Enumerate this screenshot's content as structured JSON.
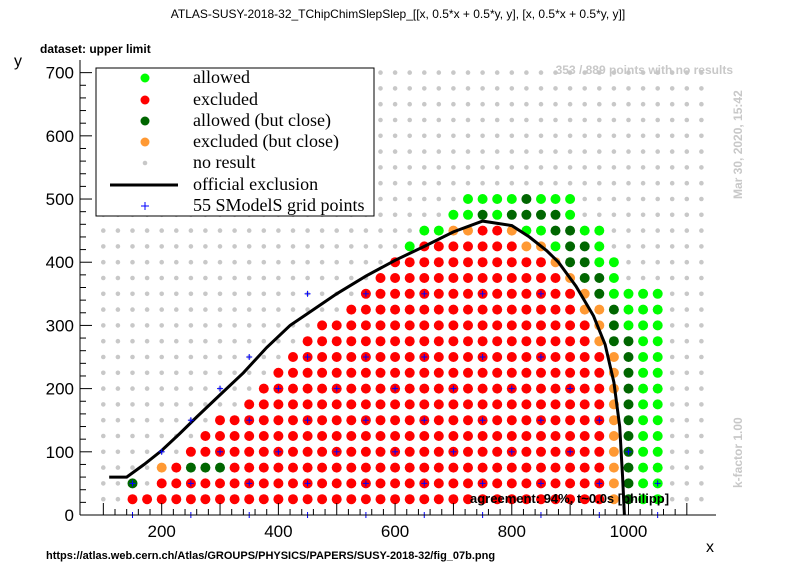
{
  "title": "ATLAS-SUSY-2018-32_TChipChimSlepSlep_[[x, 0.5*x + 0.5*y, y], [x, 0.5*x + 0.5*y, y]]",
  "subtitle": "dataset: upper limit",
  "points_note": "353 / 889 points with no results",
  "date_note": "Mar 30, 2020, 15:42",
  "kfactor_note": "k-factor 1.00",
  "agreement_note": "agreement: 94%, t~0.0s [philipp]",
  "source_url": "https://atlas.web.cern.ch/Atlas/GROUPS/PHYSICS/PAPERS/SUSY-2018-32/fig_07b.png",
  "legend": {
    "allowed": "allowed",
    "excluded": "excluded",
    "allowed_close": "allowed (but close)",
    "excluded_close": "excluded (but close)",
    "no_result": "no result",
    "official": "official exclusion",
    "grid": "55 SModelS grid points"
  },
  "chart_data": {
    "type": "scatter",
    "xlabel": "x",
    "ylabel": "y",
    "xlim": [
      60,
      1150
    ],
    "ylim": [
      0,
      720
    ],
    "x_ticks": [
      200,
      400,
      600,
      800,
      1000
    ],
    "y_ticks": [
      0,
      100,
      200,
      300,
      400,
      500,
      600,
      700
    ],
    "grid": false,
    "legend_position": "top-left",
    "colors": {
      "allowed": "#00ff00",
      "excluded": "#ff0000",
      "allowed_close": "#006600",
      "excluded_close": "#ff9933",
      "no_result": "#c8c8c8",
      "official": "#000000",
      "grid": "#0000ff"
    },
    "point_grid": {
      "x_start": 100,
      "x_end": 1125,
      "x_step": 25,
      "y_start": 0,
      "y_end": 700,
      "y_step": 25
    },
    "official_exclusion": [
      [
        110,
        60
      ],
      [
        140,
        60
      ],
      [
        170,
        80
      ],
      [
        200,
        102
      ],
      [
        230,
        128
      ],
      [
        260,
        155
      ],
      [
        300,
        190
      ],
      [
        340,
        225
      ],
      [
        380,
        265
      ],
      [
        420,
        300
      ],
      [
        460,
        325
      ],
      [
        500,
        350
      ],
      [
        550,
        378
      ],
      [
        600,
        403
      ],
      [
        650,
        425
      ],
      [
        700,
        448
      ],
      [
        750,
        465
      ],
      [
        800,
        458
      ],
      [
        830,
        440
      ],
      [
        860,
        418
      ],
      [
        880,
        400
      ],
      [
        910,
        362
      ],
      [
        940,
        315
      ],
      [
        960,
        270
      ],
      [
        975,
        210
      ],
      [
        985,
        140
      ],
      [
        990,
        60
      ],
      [
        993,
        0
      ]
    ],
    "excluded_close_points": [
      [
        200,
        75
      ],
      [
        700,
        450
      ],
      [
        725,
        450
      ],
      [
        800,
        450
      ],
      [
        825,
        425
      ],
      [
        850,
        425
      ],
      [
        875,
        400
      ],
      [
        900,
        375
      ],
      [
        925,
        350
      ],
      [
        925,
        325
      ],
      [
        950,
        325
      ],
      [
        950,
        300
      ],
      [
        950,
        275
      ],
      [
        975,
        250
      ],
      [
        975,
        225
      ],
      [
        975,
        200
      ],
      [
        975,
        175
      ],
      [
        975,
        150
      ],
      [
        975,
        125
      ],
      [
        975,
        100
      ],
      [
        975,
        75
      ],
      [
        975,
        50
      ],
      [
        975,
        25
      ]
    ],
    "allowed_close_points": [
      [
        150,
        50
      ],
      [
        250,
        75
      ],
      [
        275,
        75
      ],
      [
        300,
        75
      ],
      [
        750,
        475
      ],
      [
        825,
        500
      ],
      [
        800,
        475
      ],
      [
        825,
        475
      ],
      [
        850,
        475
      ],
      [
        875,
        475
      ],
      [
        875,
        450
      ],
      [
        900,
        450
      ],
      [
        900,
        425
      ],
      [
        925,
        425
      ],
      [
        900,
        400
      ],
      [
        925,
        400
      ],
      [
        925,
        375
      ],
      [
        950,
        375
      ],
      [
        950,
        350
      ],
      [
        975,
        325
      ],
      [
        975,
        300
      ],
      [
        975,
        275
      ],
      [
        1000,
        275
      ],
      [
        1000,
        250
      ],
      [
        1000,
        225
      ],
      [
        1000,
        200
      ],
      [
        1000,
        175
      ],
      [
        1000,
        150
      ],
      [
        1000,
        125
      ],
      [
        1000,
        100
      ],
      [
        1000,
        75
      ],
      [
        1000,
        50
      ],
      [
        1000,
        25
      ]
    ],
    "grid_points": [
      [
        150,
        0
      ],
      [
        250,
        0
      ],
      [
        350,
        0
      ],
      [
        450,
        0
      ],
      [
        550,
        0
      ],
      [
        650,
        0
      ],
      [
        750,
        0
      ],
      [
        850,
        0
      ],
      [
        950,
        0
      ],
      [
        1050,
        0
      ],
      [
        150,
        50
      ],
      [
        250,
        50
      ],
      [
        350,
        50
      ],
      [
        450,
        50
      ],
      [
        550,
        50
      ],
      [
        650,
        50
      ],
      [
        750,
        50
      ],
      [
        850,
        50
      ],
      [
        950,
        50
      ],
      [
        1050,
        50
      ],
      [
        200,
        100
      ],
      [
        300,
        100
      ],
      [
        400,
        100
      ],
      [
        500,
        100
      ],
      [
        600,
        100
      ],
      [
        700,
        100
      ],
      [
        800,
        100
      ],
      [
        900,
        100
      ],
      [
        1000,
        100
      ],
      [
        250,
        150
      ],
      [
        350,
        150
      ],
      [
        450,
        150
      ],
      [
        550,
        150
      ],
      [
        650,
        150
      ],
      [
        750,
        150
      ],
      [
        850,
        150
      ],
      [
        950,
        150
      ],
      [
        300,
        200
      ],
      [
        400,
        200
      ],
      [
        500,
        200
      ],
      [
        600,
        200
      ],
      [
        700,
        200
      ],
      [
        800,
        200
      ],
      [
        900,
        200
      ],
      [
        350,
        250
      ],
      [
        450,
        250
      ],
      [
        550,
        250
      ],
      [
        650,
        250
      ],
      [
        750,
        250
      ],
      [
        850,
        250
      ],
      [
        450,
        350
      ],
      [
        550,
        350
      ],
      [
        650,
        350
      ],
      [
        750,
        350
      ],
      [
        850,
        350
      ]
    ]
  }
}
